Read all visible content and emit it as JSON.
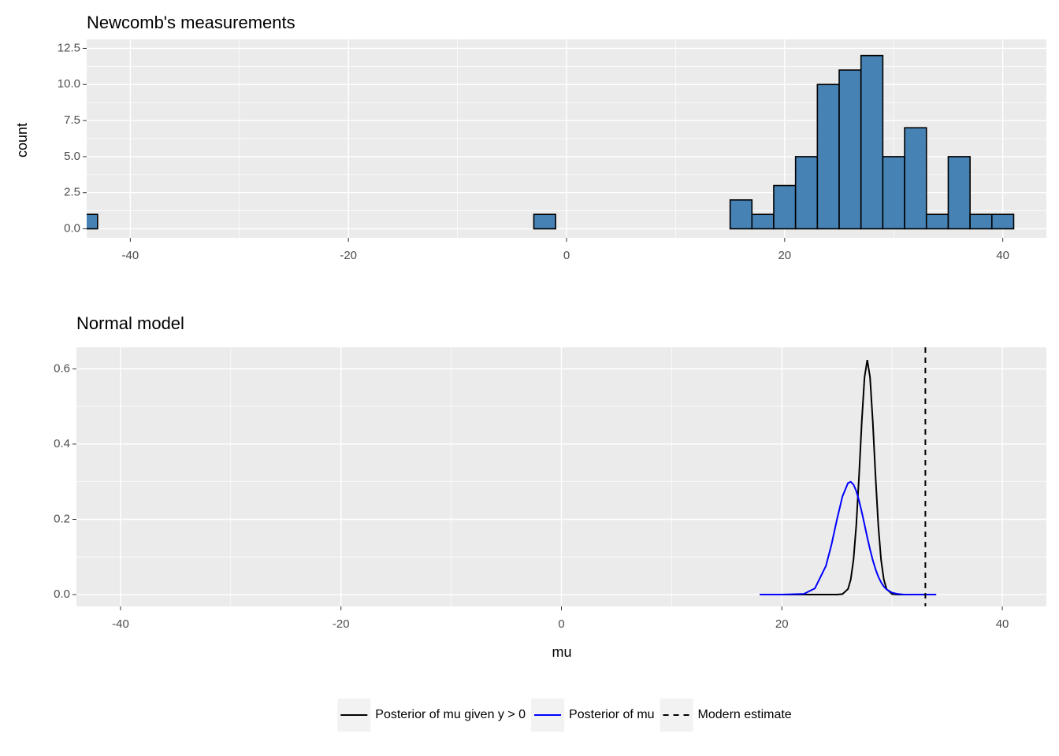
{
  "chart_data": [
    {
      "type": "histogram",
      "title": "Newcomb's measurements",
      "ylabel": "count",
      "bins": [
        -45,
        -43,
        -41,
        -39,
        -37,
        -35,
        -33,
        -31,
        -29,
        -27,
        -25,
        -23,
        -21,
        -19,
        -17,
        -15,
        -13,
        -11,
        -9,
        -7,
        -5,
        -3,
        -1,
        1,
        3,
        5,
        7,
        9,
        11,
        13,
        15,
        17,
        19,
        21,
        23,
        25,
        27,
        29,
        31,
        33,
        35,
        37,
        39,
        41
      ],
      "values": [
        1,
        0,
        0,
        0,
        0,
        0,
        0,
        0,
        0,
        0,
        0,
        0,
        0,
        0,
        0,
        0,
        0,
        0,
        0,
        0,
        0,
        1,
        0,
        0,
        0,
        0,
        0,
        0,
        0,
        0,
        2,
        1,
        3,
        5,
        10,
        11,
        12,
        5,
        7,
        1,
        5,
        1,
        1
      ],
      "color": "#4682b4",
      "edgecolor": "#000000",
      "xlim": [
        -44,
        44
      ],
      "xticks": [
        -40,
        -20,
        0,
        20,
        40
      ],
      "ylim": [
        -0.625,
        13.125
      ],
      "yticks": [
        {
          "value": 0,
          "label": "0.0"
        },
        2.5,
        {
          "value": 5,
          "label": "5.0"
        },
        7.5,
        {
          "value": 10,
          "label": "10.0"
        },
        12.5
      ],
      "grid": true
    },
    {
      "type": "line",
      "title": "Normal model",
      "xlabel": "mu",
      "x": [
        18,
        20,
        22,
        23,
        24,
        24.5,
        25,
        25.5,
        26,
        26.25,
        26.5,
        26.75,
        27,
        27.25,
        27.5,
        27.75,
        28,
        28.25,
        28.5,
        28.75,
        29,
        29.25,
        29.5,
        30,
        30.5,
        31,
        32,
        34
      ],
      "series": [
        {
          "name": "Posterior of mu given y > 0",
          "color": "#000000",
          "values": [
            0,
            0,
            0,
            0,
            0,
            0,
            0.0001,
            0.0013,
            0.0148,
            0.04,
            0.0926,
            0.1839,
            0.3136,
            0.4594,
            0.5776,
            0.6234,
            0.5776,
            0.4594,
            0.3136,
            0.1839,
            0.0926,
            0.04,
            0.0148,
            0.0013,
            0.0001,
            0,
            0,
            0
          ]
        },
        {
          "name": "Posterior of mu",
          "color": "#0000ff",
          "values": [
            0,
            0,
            0.002,
            0.0166,
            0.0764,
            0.1325,
            0.1997,
            0.2612,
            0.2966,
            0.2998,
            0.2925,
            0.2754,
            0.2503,
            0.2197,
            0.1861,
            0.1521,
            0.1201,
            0.0915,
            0.0673,
            0.0477,
            0.0327,
            0.0216,
            0.0138,
            0.0051,
            0.0016,
            0.0004,
            0,
            0
          ]
        }
      ],
      "vlines": [
        {
          "name": "Modern estimate",
          "x": 33.02,
          "color": "#000000",
          "dashed": true
        }
      ],
      "xlim": [
        -44,
        44
      ],
      "xticks": [
        -40,
        -20,
        0,
        20,
        40
      ],
      "ylim": [
        -0.0313,
        0.6573
      ],
      "yticks": [
        {
          "value": 0,
          "label": "0.0"
        },
        0.2,
        0.4,
        0.6
      ],
      "grid": true,
      "legend": "bottom"
    }
  ]
}
